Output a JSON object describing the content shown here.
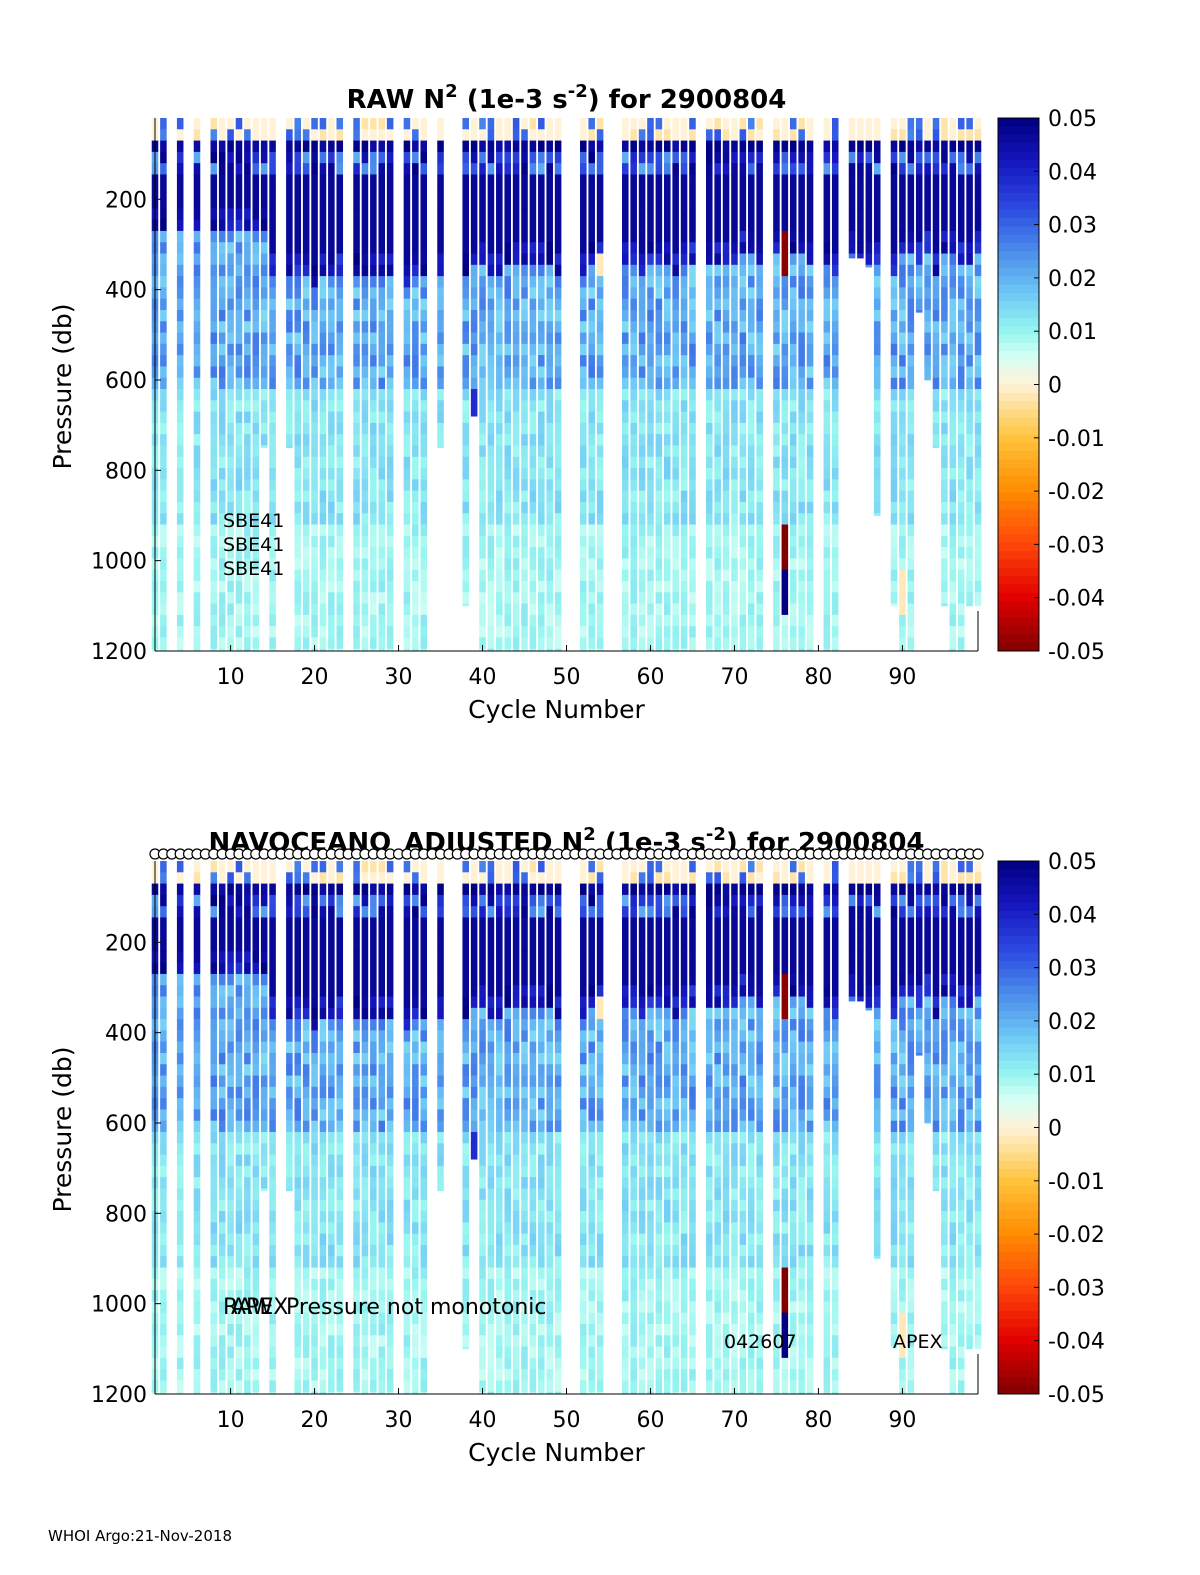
{
  "chart_data": [
    {
      "type": "heatmap",
      "title_prefix": "RAW N",
      "title_sup1": "2",
      "title_mid": " (1e-3 s",
      "title_sup2": "-2",
      "title_suffix": ") for 2900804",
      "xlabel": "Cycle Number",
      "ylabel": "Pressure (db)",
      "xlim": [
        1,
        99
      ],
      "ylim": [
        20,
        1200
      ],
      "y_reversed": true,
      "xticks": [
        10,
        20,
        30,
        40,
        50,
        60,
        70,
        80,
        90
      ],
      "yticks": [
        200,
        400,
        600,
        800,
        1000,
        1200
      ],
      "colorbar": {
        "min": -0.05,
        "max": 0.05,
        "colormap": "jet-with-white-center",
        "ticks": [
          "0.05",
          "0.04",
          "0.03",
          "0.02",
          "0.01",
          "0",
          "-0.01",
          "-0.02",
          "-0.03",
          "-0.04",
          "-0.05"
        ]
      },
      "cycles": "1-99 (missing: 3, 5, 7, 16, 24, 30, 34, 36, 37, 50, 51, 55, 56, 66, 74, 80, 83, 88)",
      "annotations": [
        "SBE41",
        "SBE41",
        "SBE41"
      ]
    },
    {
      "type": "heatmap",
      "title_prefix": "NAVOCEANO_ADJUSTED N",
      "title_sup1": "2",
      "title_mid": " (1e-3 s",
      "title_sup2": "-2",
      "title_suffix": ") for 2900804",
      "xlabel": "Cycle Number",
      "ylabel": "Pressure (db)",
      "xlim": [
        1,
        99
      ],
      "ylim": [
        20,
        1200
      ],
      "y_reversed": true,
      "xticks": [
        10,
        20,
        30,
        40,
        50,
        60,
        70,
        80,
        90
      ],
      "yticks": [
        200,
        400,
        600,
        800,
        1000,
        1200
      ],
      "colorbar": {
        "min": -0.05,
        "max": 0.05,
        "colormap": "jet-with-white-center",
        "ticks": [
          "0.05",
          "0.04",
          "0.03",
          "0.02",
          "0.01",
          "0",
          "-0.01",
          "-0.02",
          "-0.03",
          "-0.04",
          "-0.05"
        ]
      },
      "qc_markers": "open circles along top axis at every cycle 1-99",
      "annotations": [
        "RAW",
        "APEX",
        "Pressure not monotonic",
        "042607",
        "APEX"
      ]
    }
  ],
  "footer": "WHOI Argo:21-Nov-2018"
}
